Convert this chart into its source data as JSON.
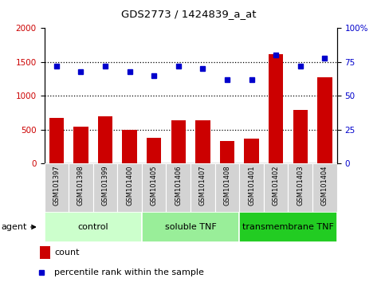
{
  "title": "GDS2773 / 1424839_a_at",
  "samples": [
    "GSM101397",
    "GSM101398",
    "GSM101399",
    "GSM101400",
    "GSM101405",
    "GSM101406",
    "GSM101407",
    "GSM101408",
    "GSM101401",
    "GSM101402",
    "GSM101403",
    "GSM101404"
  ],
  "counts": [
    680,
    540,
    700,
    500,
    380,
    640,
    640,
    330,
    370,
    1620,
    790,
    1270
  ],
  "percentiles": [
    72,
    68,
    72,
    68,
    65,
    72,
    70,
    62,
    62,
    80,
    72,
    78
  ],
  "groups": [
    {
      "label": "control",
      "start": 0,
      "end": 3,
      "color": "#ccffcc"
    },
    {
      "label": "soluble TNF",
      "start": 4,
      "end": 7,
      "color": "#99ee99"
    },
    {
      "label": "transmembrane TNF",
      "start": 8,
      "end": 11,
      "color": "#22cc22"
    }
  ],
  "bar_color": "#cc0000",
  "dot_color": "#0000cc",
  "left_ylim": [
    0,
    2000
  ],
  "right_ylim": [
    0,
    100
  ],
  "left_yticks": [
    0,
    500,
    1000,
    1500,
    2000
  ],
  "right_yticks": [
    0,
    25,
    50,
    75,
    100
  ],
  "right_yticklabels": [
    "0",
    "25",
    "50",
    "75",
    "100%"
  ],
  "grid_values": [
    500,
    1000,
    1500
  ],
  "agent_label": "agent"
}
